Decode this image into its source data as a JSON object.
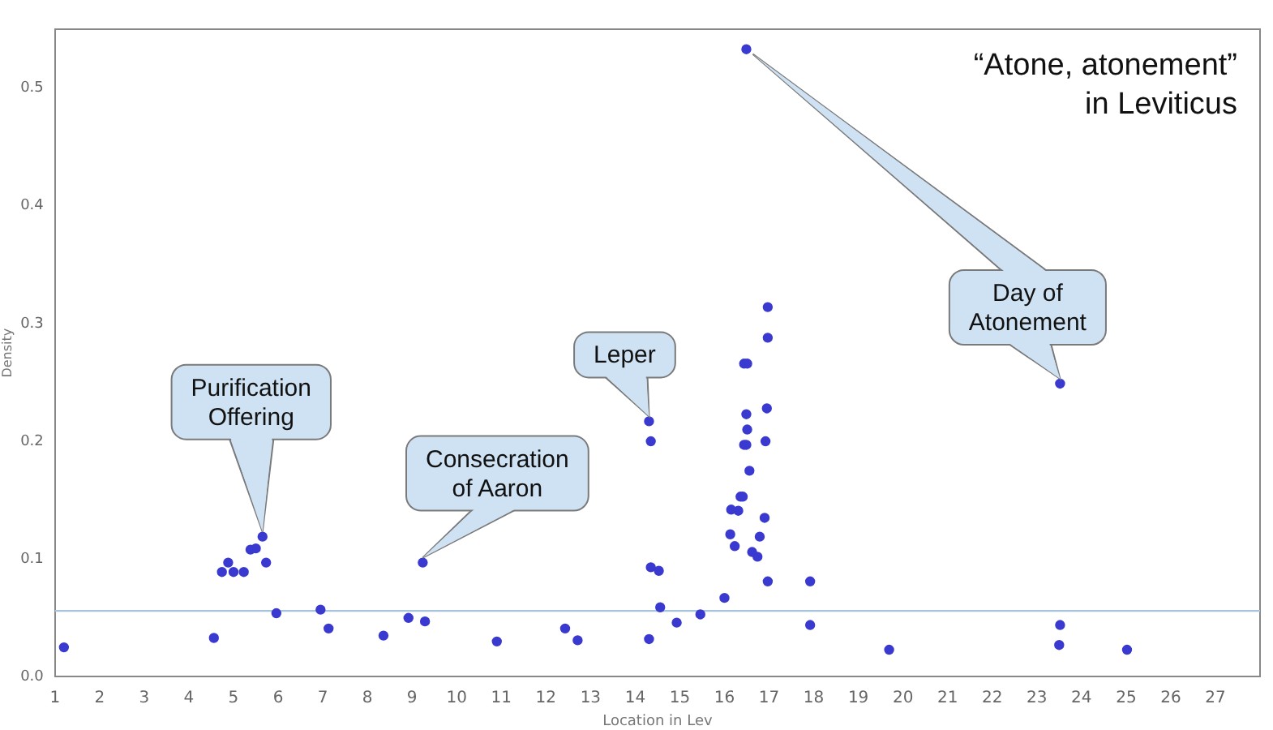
{
  "chart_data": {
    "type": "scatter",
    "title": "“Atone, atonement” in Leviticus",
    "xlabel": "Location in Lev",
    "ylabel": "Density",
    "xlim": [
      1,
      28
    ],
    "ylim": [
      0,
      0.55
    ],
    "xticks": [
      1,
      2,
      3,
      4,
      5,
      6,
      7,
      8,
      9,
      10,
      11,
      12,
      13,
      14,
      15,
      16,
      17,
      18,
      19,
      20,
      21,
      22,
      23,
      24,
      25,
      26,
      27
    ],
    "yticks": [
      {
        "value": 0,
        "label": "0.0"
      },
      0.1,
      0.2,
      0.3,
      0.4,
      0.5
    ],
    "grid": false,
    "legend": false,
    "marker": "circle",
    "series": [
      {
        "color": "#3a3ad0",
        "x": [
          1.2,
          4.56,
          4.74,
          4.88,
          5.0,
          5.23,
          5.38,
          5.5,
          5.65,
          5.73,
          5.96,
          6.95,
          7.13,
          8.36,
          8.92,
          9.24,
          9.29,
          10.9,
          12.43,
          12.71,
          14.31,
          14.31,
          14.35,
          14.35,
          14.53,
          14.56,
          14.93,
          15.46,
          16.0,
          16.13,
          16.15,
          16.23,
          16.31,
          16.36,
          16.41,
          16.44,
          16.49,
          16.49,
          16.51,
          16.44,
          16.51,
          16.56,
          16.62,
          16.74,
          16.79,
          16.9,
          16.92,
          16.95,
          16.97,
          17.92,
          17.92,
          19.69,
          23.5,
          23.52,
          23.52,
          25.02,
          16.49,
          16.97,
          16.97
        ],
        "values": [
          0.025,
          0.033,
          0.089,
          0.097,
          0.089,
          0.089,
          0.108,
          0.109,
          0.119,
          0.097,
          0.054,
          0.057,
          0.041,
          0.035,
          0.05,
          0.097,
          0.047,
          0.03,
          0.041,
          0.031,
          0.032,
          0.217,
          0.2,
          0.093,
          0.09,
          0.059,
          0.046,
          0.053,
          0.067,
          0.121,
          0.142,
          0.111,
          0.141,
          0.153,
          0.153,
          0.197,
          0.197,
          0.223,
          0.21,
          0.266,
          0.266,
          0.175,
          0.106,
          0.102,
          0.119,
          0.135,
          0.2,
          0.228,
          0.081,
          0.081,
          0.044,
          0.023,
          0.027,
          0.044,
          0.249,
          0.023,
          0.533,
          0.314,
          0.288
        ]
      }
    ],
    "ref_lines": [
      {
        "axis": "y",
        "value": 0.056,
        "color": "#a8c4dc"
      }
    ],
    "annotations": [
      {
        "text": "Purification\nOffering",
        "x": 5.65,
        "y": 0.119
      },
      {
        "text": "Consecration\nof Aaron",
        "x": 9.24,
        "y": 0.097
      },
      {
        "text": "Leper",
        "x": 14.31,
        "y": 0.217
      },
      {
        "text": "Day of\nAtonement",
        "x": 23.52,
        "y": 0.249
      }
    ]
  }
}
